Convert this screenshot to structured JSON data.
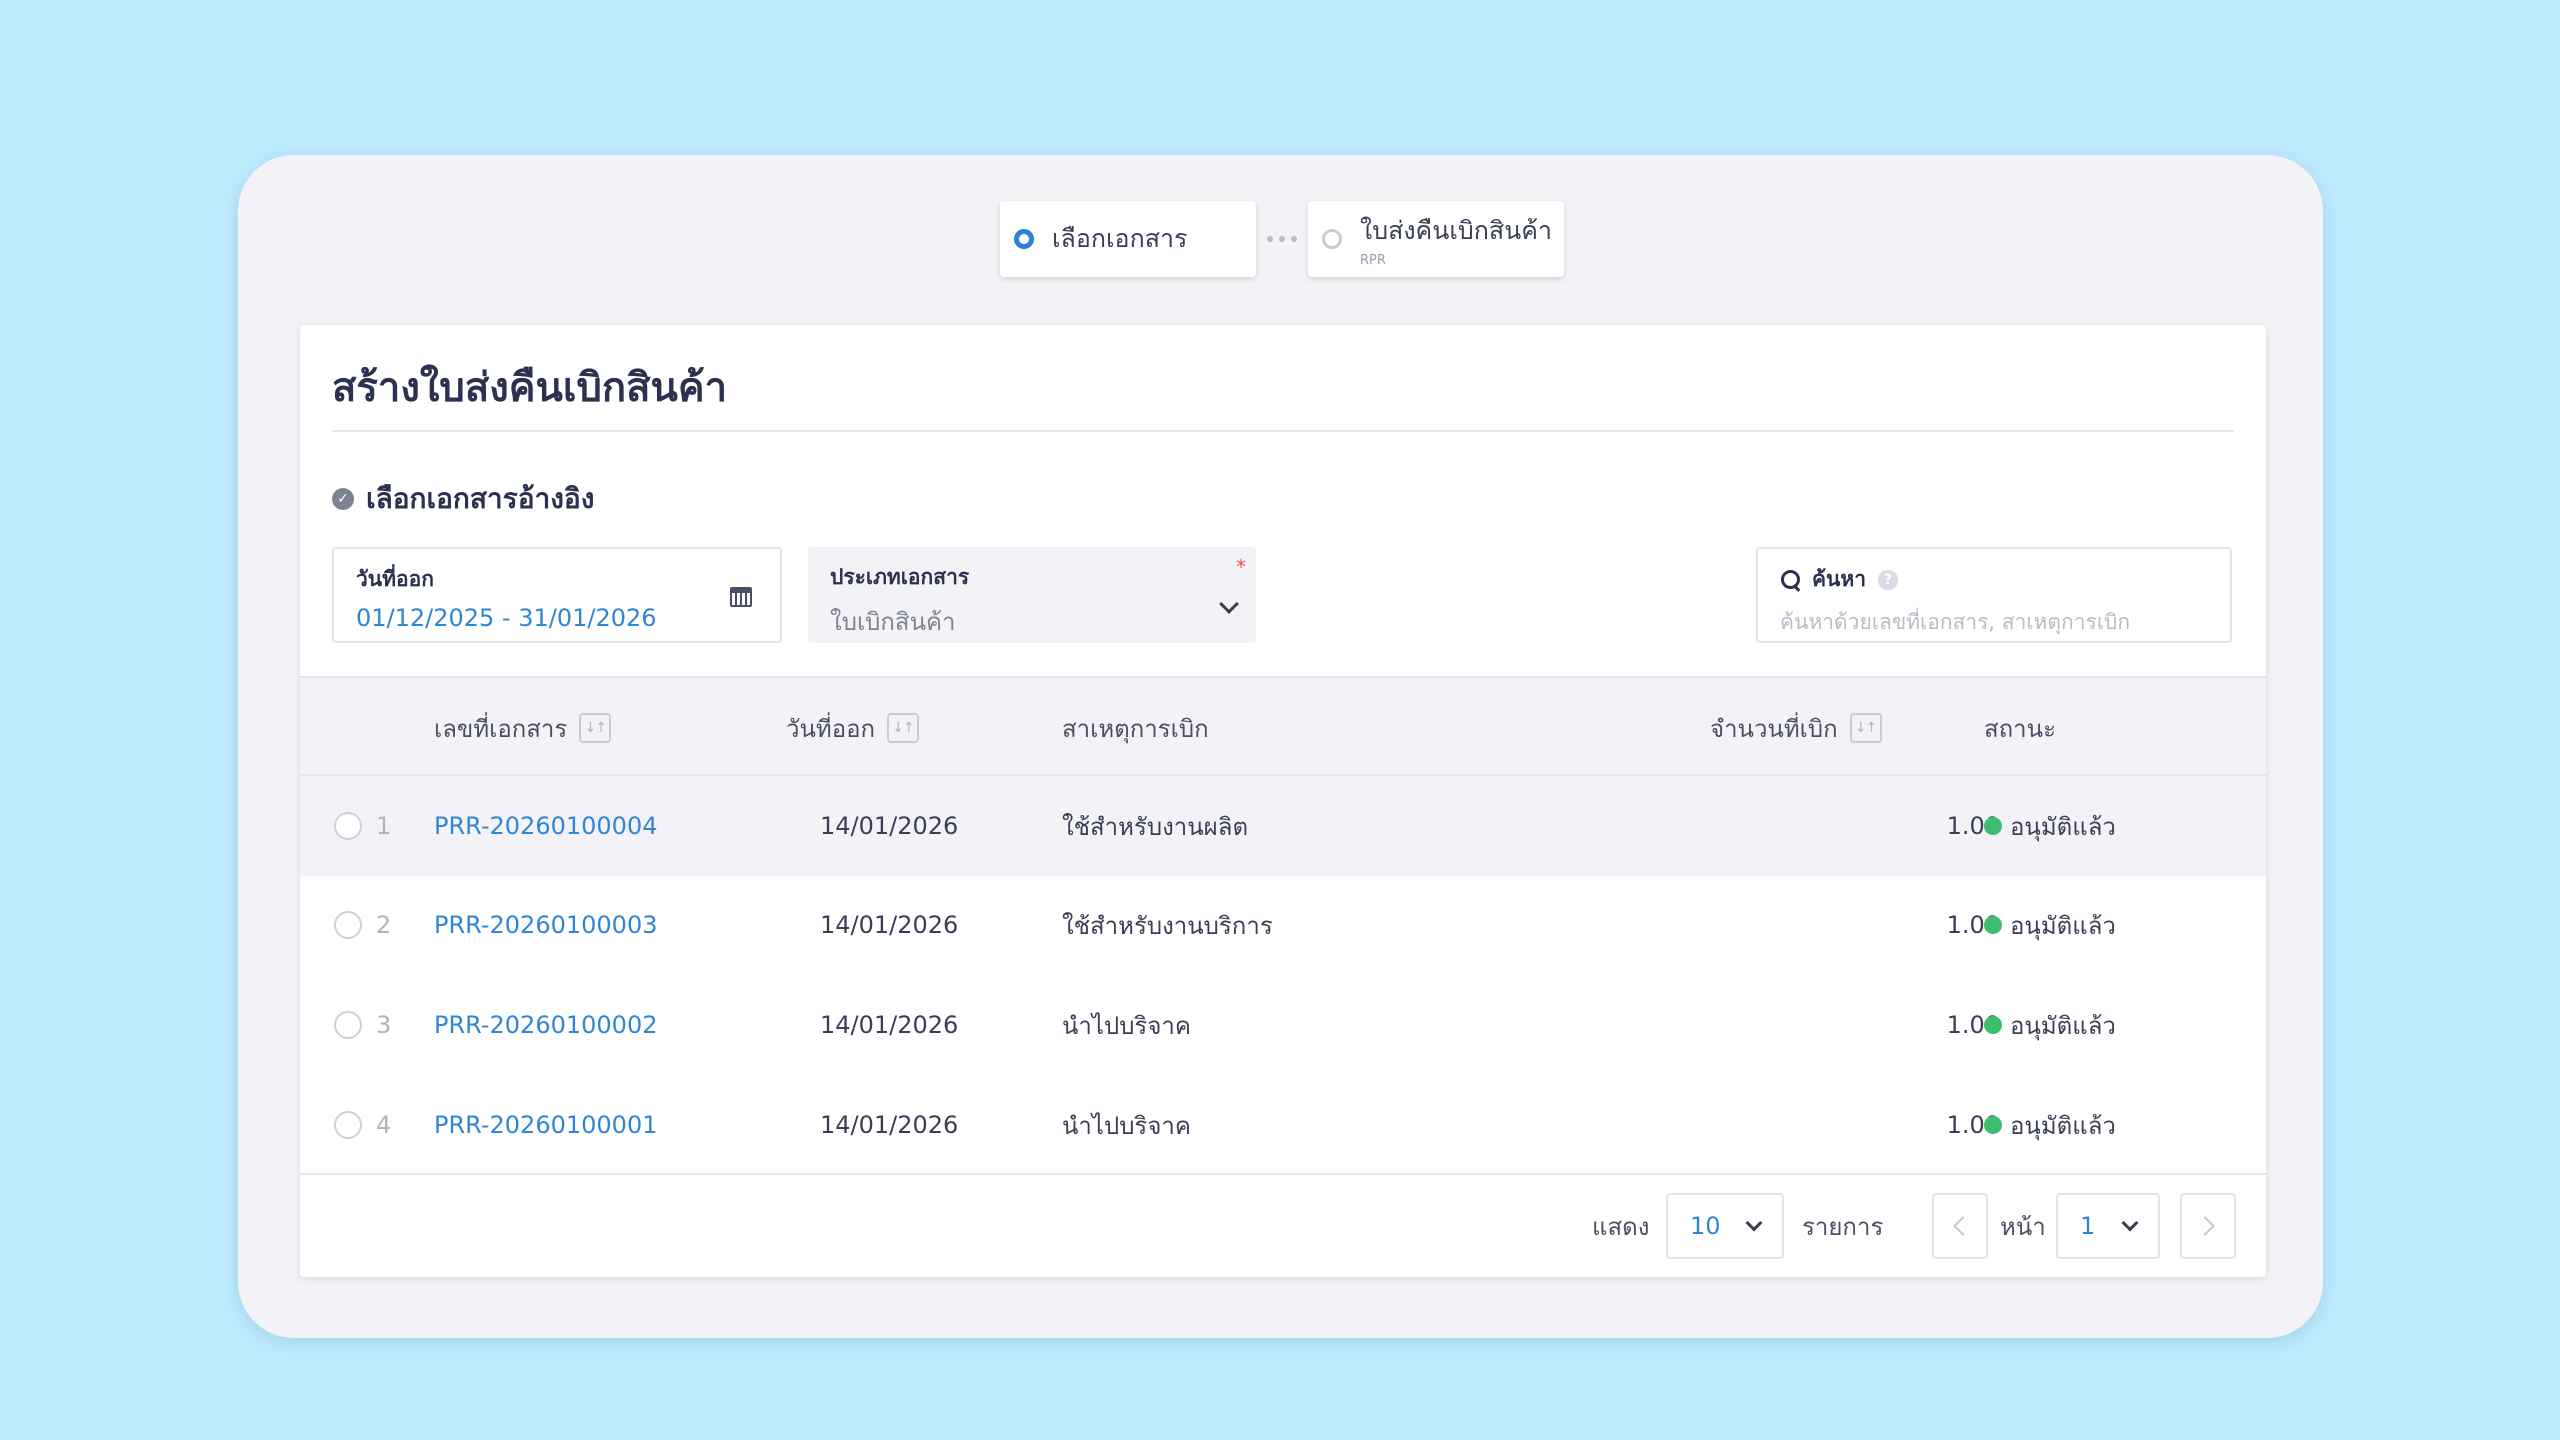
{
  "stepper": {
    "steps": [
      {
        "label": "เลือกเอกสาร",
        "sub": ""
      },
      {
        "label": "ใบส่งคืนเบิกสินค้า",
        "sub": "RPR"
      }
    ]
  },
  "page": {
    "title": "สร้างใบส่งคืนเบิกสินค้า",
    "section_title": "เลือกเอกสารอ้างอิง"
  },
  "filters": {
    "date": {
      "label": "วันที่ออก",
      "value": "01/12/2025 - 31/01/2026"
    },
    "doc_type": {
      "label": "ประเภทเอกสาร",
      "value": "ใบเบิกสินค้า",
      "required_mark": "*"
    },
    "search": {
      "label": "ค้นหา",
      "placeholder": "ค้นหาด้วยเลขที่เอกสาร, สาเหตุการเบิก"
    }
  },
  "table": {
    "columns": {
      "doc_no": "เลขที่เอกสาร",
      "date": "วันที่ออก",
      "reason": "สาเหตุการเบิก",
      "qty": "จำนวนที่เบิก",
      "status": "สถานะ"
    },
    "rows": [
      {
        "num": "1",
        "doc_no": "PRR-20260100004",
        "date": "14/01/2026",
        "reason": "ใช้สำหรับงานผลิต",
        "qty": "1.00",
        "status": "อนุมัติแล้ว"
      },
      {
        "num": "2",
        "doc_no": "PRR-20260100003",
        "date": "14/01/2026",
        "reason": "ใช้สำหรับงานบริการ",
        "qty": "1.00",
        "status": "อนุมัติแล้ว"
      },
      {
        "num": "3",
        "doc_no": "PRR-20260100002",
        "date": "14/01/2026",
        "reason": "นำไปบริจาค",
        "qty": "1.00",
        "status": "อนุมัติแล้ว"
      },
      {
        "num": "4",
        "doc_no": "PRR-20260100001",
        "date": "14/01/2026",
        "reason": "นำไปบริจาค",
        "qty": "1.00",
        "status": "อนุมัติแล้ว"
      }
    ]
  },
  "pagination": {
    "show_label": "แสดง",
    "page_size": "10",
    "items_label": "รายการ",
    "page_label": "หน้า",
    "page": "1"
  },
  "colors": {
    "background": "#bdeafd",
    "accent": "#2f86d6",
    "status_approved": "#3dbd6e"
  }
}
